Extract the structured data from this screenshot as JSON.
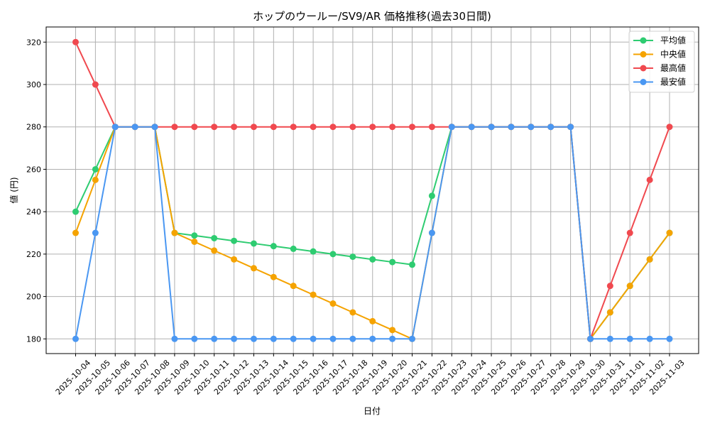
{
  "chart_data": {
    "type": "line",
    "title": "ホップのウールー/SV9/AR 価格推移(過去30日間)",
    "xlabel": "日付",
    "ylabel": "値 (円)",
    "ylim": [
      173,
      327
    ],
    "yticks": [
      180,
      200,
      220,
      240,
      260,
      280,
      300,
      320
    ],
    "grid": true,
    "legend_position": "upper right",
    "x": [
      "2025-10-04",
      "2025-10-05",
      "2025-10-06",
      "2025-10-07",
      "2025-10-08",
      "2025-10-09",
      "2025-10-10",
      "2025-10-11",
      "2025-10-12",
      "2025-10-13",
      "2025-10-14",
      "2025-10-15",
      "2025-10-16",
      "2025-10-17",
      "2025-10-18",
      "2025-10-19",
      "2025-10-20",
      "2025-10-21",
      "2025-10-22",
      "2025-10-23",
      "2025-10-24",
      "2025-10-25",
      "2025-10-26",
      "2025-10-27",
      "2025-10-28",
      "2025-10-29",
      "2025-10-30",
      "2025-10-31",
      "2025-11-01",
      "2025-11-02",
      "2025-11-03"
    ],
    "series": [
      {
        "name": "平均値",
        "color": "#2ecc71",
        "values": [
          240,
          260,
          280,
          280,
          280,
          230,
          228.75,
          227.5,
          226.25,
          225,
          223.75,
          222.5,
          221.25,
          220,
          218.75,
          217.5,
          216.25,
          215,
          247.5,
          280,
          280,
          280,
          280,
          280,
          280,
          280,
          180,
          192.5,
          205,
          217.5,
          230
        ]
      },
      {
        "name": "中央値",
        "color": "#f5a300",
        "values": [
          230,
          255,
          280,
          280,
          280,
          230,
          225.83,
          221.67,
          217.5,
          213.33,
          209.17,
          205,
          200.83,
          196.67,
          192.5,
          188.33,
          184.17,
          180,
          230,
          280,
          280,
          280,
          280,
          280,
          280,
          280,
          180,
          192.5,
          205,
          217.5,
          230
        ]
      },
      {
        "name": "最高値",
        "color": "#f0494f",
        "values": [
          320,
          300,
          280,
          280,
          280,
          280,
          280,
          280,
          280,
          280,
          280,
          280,
          280,
          280,
          280,
          280,
          280,
          280,
          280,
          280,
          280,
          280,
          280,
          280,
          280,
          280,
          180,
          205,
          230,
          255,
          280
        ]
      },
      {
        "name": "最安値",
        "color": "#4a97f2",
        "values": [
          180,
          230,
          280,
          280,
          280,
          180,
          180,
          180,
          180,
          180,
          180,
          180,
          180,
          180,
          180,
          180,
          180,
          180,
          230,
          280,
          280,
          280,
          280,
          280,
          280,
          280,
          180,
          180,
          180,
          180,
          180
        ]
      }
    ]
  }
}
